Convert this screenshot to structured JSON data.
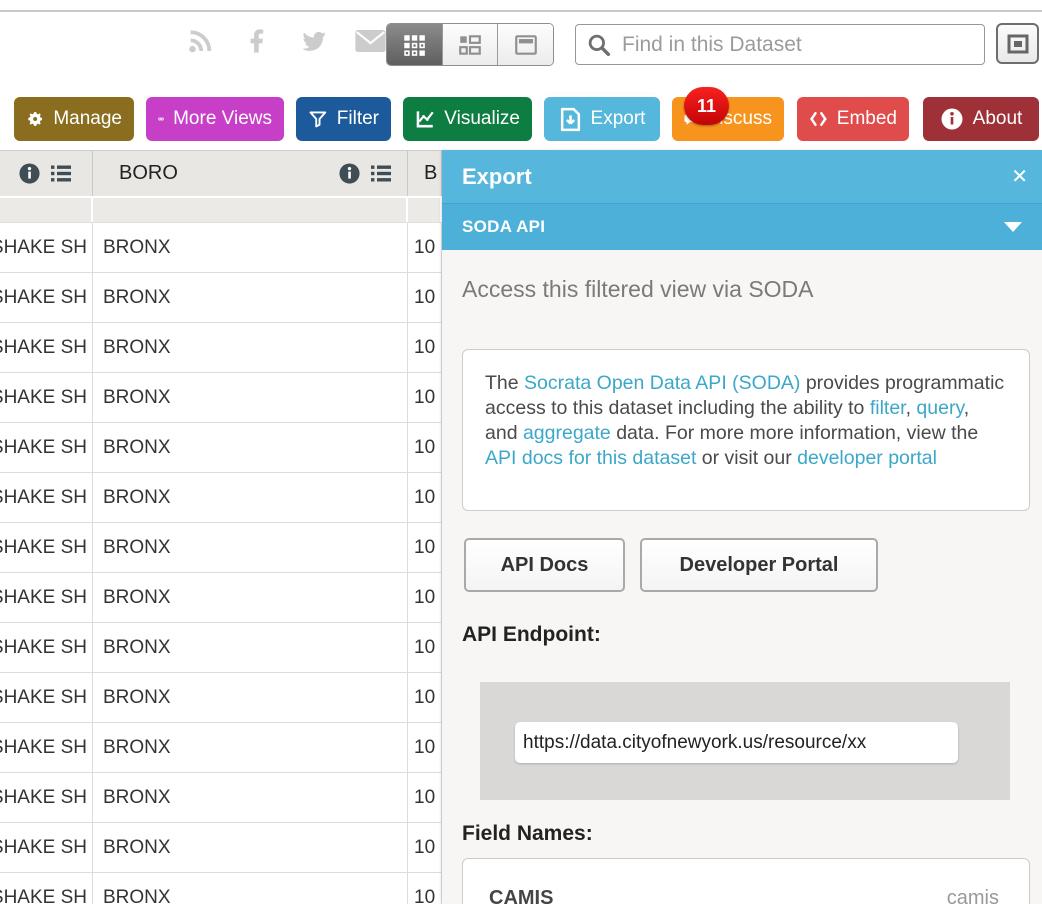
{
  "toolbar": {
    "social_icons": [
      "rss-icon",
      "facebook-icon",
      "twitter-icon",
      "email-icon"
    ],
    "view_modes": [
      "grid-view",
      "card-view",
      "page-view"
    ],
    "active_view": "grid-view",
    "search_placeholder": "Find in this Dataset",
    "fullscreen_icon": "maximize-icon"
  },
  "actions": [
    {
      "id": "manage",
      "label": "Manage",
      "color": "#8a6d1e",
      "icon": "gear-icon"
    },
    {
      "id": "moreviews",
      "label": "More Views",
      "color": "#c73fc7",
      "icon": "binoculars-icon"
    },
    {
      "id": "filter",
      "label": "Filter",
      "color": "#1d5a9c",
      "icon": "funnel-icon"
    },
    {
      "id": "visualize",
      "label": "Visualize",
      "color": "#0e7d41",
      "icon": "chart-icon"
    },
    {
      "id": "export",
      "label": "Export",
      "color": "#56b7dc",
      "icon": "export-doc-icon",
      "selected": true
    },
    {
      "id": "discuss",
      "label": "Discuss",
      "color": "#f7941e",
      "icon": "speech-bubble-icon",
      "badge": "11"
    },
    {
      "id": "embed",
      "label": "Embed",
      "color": "#e04b4b",
      "icon": "code-brackets-icon"
    },
    {
      "id": "about",
      "label": "About",
      "color": "#9e3038",
      "icon": "info-icon"
    }
  ],
  "table": {
    "columns": [
      {
        "label": "",
        "icons": [
          "info-icon",
          "column-menu-icon"
        ]
      },
      {
        "label": "BORO",
        "icons": [
          "info-icon",
          "column-menu-icon"
        ]
      },
      {
        "label": "B",
        "icons": []
      }
    ],
    "rows": [
      {
        "dba": "SHAKE SH",
        "boro": "BRONX",
        "building": "10"
      },
      {
        "dba": "SHAKE SH",
        "boro": "BRONX",
        "building": "10"
      },
      {
        "dba": "SHAKE SH",
        "boro": "BRONX",
        "building": "10"
      },
      {
        "dba": "SHAKE SH",
        "boro": "BRONX",
        "building": "10"
      },
      {
        "dba": "SHAKE SH",
        "boro": "BRONX",
        "building": "10"
      },
      {
        "dba": "SHAKE SH",
        "boro": "BRONX",
        "building": "10"
      },
      {
        "dba": "SHAKE SH",
        "boro": "BRONX",
        "building": "10"
      },
      {
        "dba": "SHAKE SH",
        "boro": "BRONX",
        "building": "10"
      },
      {
        "dba": "SHAKE SH",
        "boro": "BRONX",
        "building": "10"
      },
      {
        "dba": "SHAKE SH",
        "boro": "BRONX",
        "building": "10"
      },
      {
        "dba": "SHAKE SH",
        "boro": "BRONX",
        "building": "10"
      },
      {
        "dba": "SHAKE SH",
        "boro": "BRONX",
        "building": "10"
      },
      {
        "dba": "SHAKE SH",
        "boro": "BRONX",
        "building": "10"
      },
      {
        "dba": "SHAKE SH",
        "boro": "BRONX",
        "building": "10"
      }
    ]
  },
  "panel": {
    "title": "Export",
    "close_glyph": "✕",
    "section": "SODA API",
    "subtitle": "Access this filtered view via SODA",
    "info_segments": [
      {
        "t": "The "
      },
      {
        "t": "Socrata Open Data API (SODA)",
        "link": true
      },
      {
        "t": " provides programmatic access to this dataset including the ability to "
      },
      {
        "t": "filter",
        "link": true
      },
      {
        "t": ", "
      },
      {
        "t": "query",
        "link": true
      },
      {
        "t": ", and "
      },
      {
        "t": "aggregate",
        "link": true
      },
      {
        "t": " data. For more more information, view the "
      },
      {
        "t": "API docs for this dataset",
        "link": true
      },
      {
        "t": " or visit our "
      },
      {
        "t": "developer portal",
        "link": true
      }
    ],
    "buttons": {
      "api_docs": "API Docs",
      "developer_portal": "Developer Portal"
    },
    "endpoint_label": "API Endpoint:",
    "endpoint_value": "https://data.cityofnewyork.us/resource/xx",
    "fields_label": "Field Names:",
    "fields": [
      {
        "name": "CAMIS",
        "api": "camis"
      }
    ]
  },
  "colors": {
    "panel_header": "#57b6db",
    "panel_section": "#4db0d8",
    "link": "#3ba7c9",
    "badge": "#e11313",
    "table_header_bg": "#e9e7e4"
  }
}
